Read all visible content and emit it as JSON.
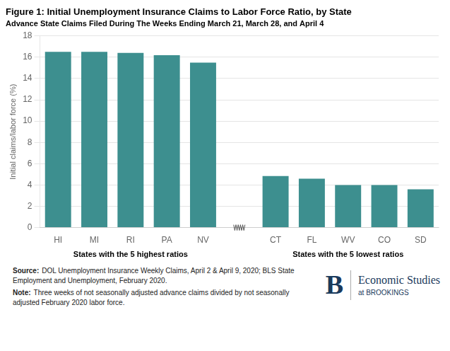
{
  "chart_data": {
    "type": "bar",
    "title": "Figure 1: Initial Unemployment Insurance Claims to Labor Force Ratio, by State",
    "subtitle": "Advance State Claims Filed During The Weeks Ending March 21, March 28, and April 4",
    "ylabel": "Initial claims/labor force (%)",
    "categories": [
      "HI",
      "MI",
      "RI",
      "PA",
      "NV",
      "CT",
      "FL",
      "WV",
      "CO",
      "SD"
    ],
    "values": [
      16.5,
      16.5,
      16.4,
      16.2,
      15.5,
      4.85,
      4.6,
      4.0,
      4.0,
      3.6
    ],
    "color": "#3d8f8f",
    "ylim": [
      0,
      18
    ],
    "yticks": [
      0,
      2,
      4,
      6,
      8,
      10,
      12,
      14,
      16,
      18
    ],
    "grid": true,
    "group_labels": [
      "States with the 5 highest ratios",
      "States with the 5 lowest ratios"
    ],
    "notes": [
      {
        "label": "Source:",
        "text": "DOL Unemployment Insurance Weekly Claims, April 2 & April 9, 2020; BLS State Employment and Unemployment, February 2020."
      },
      {
        "label": "Note:",
        "text": "Three weeks of not seasonally adjusted advance claims divided by not seasonally adjusted February 2020 labor force."
      }
    ],
    "logo": {
      "mark": "B",
      "name": "Economic Studies",
      "tagline": "at BROOKINGS"
    }
  }
}
